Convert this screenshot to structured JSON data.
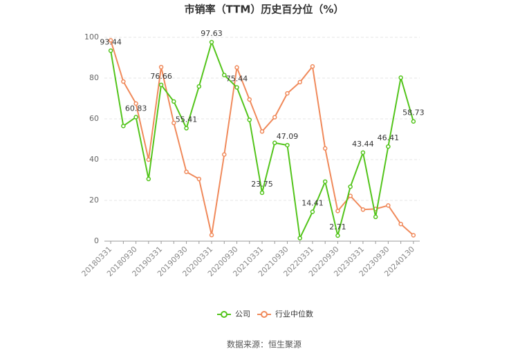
{
  "chart_data": {
    "type": "line",
    "title": "市销率（TTM）历史百分位（%）",
    "categories": [
      "20180331",
      null,
      "20180930",
      null,
      "20190331",
      null,
      "20190930",
      null,
      "20200331",
      null,
      "20200930",
      null,
      "20210331",
      null,
      "20210930",
      null,
      "20220331",
      null,
      "20220930",
      null,
      "20230331",
      null,
      "20230930",
      null,
      "20240130"
    ],
    "series": [
      {
        "name": "公司",
        "color": "#52c41a",
        "values": [
          93.44,
          56.5,
          60.83,
          30.5,
          76.66,
          68.5,
          55.41,
          75.9,
          97.63,
          81.5,
          75.44,
          59.5,
          23.75,
          48.2,
          47.09,
          1.5,
          14.41,
          29.2,
          2.71,
          26.7,
          43.44,
          11.9,
          46.41,
          80.2,
          58.73
        ]
      },
      {
        "name": "行业中位数",
        "color": "#f0895a",
        "values": [
          98.5,
          78.3,
          67.5,
          40,
          85.4,
          58,
          34,
          30.5,
          3,
          42.5,
          85.2,
          69.5,
          53.8,
          60.8,
          72.5,
          78,
          85.7,
          45.5,
          14.8,
          22.2,
          15.5,
          15.8,
          17.5,
          8.4,
          2.9
        ]
      }
    ],
    "ylim": [
      0,
      100
    ],
    "yticks": [
      0,
      20,
      40,
      60,
      80,
      100
    ],
    "grid": true,
    "legend": "bottom",
    "source": "数据来源：恒生聚源"
  }
}
